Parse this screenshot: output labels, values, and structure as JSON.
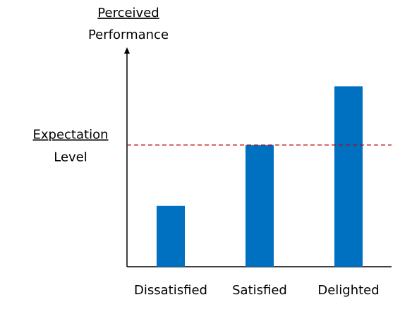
{
  "chart_data": {
    "type": "bar",
    "y_label": {
      "underlined": "Perceived",
      "text": "Performance"
    },
    "categories": [
      "Dissatisfied",
      "Satisfied",
      "Delighted"
    ],
    "values": [
      28,
      56,
      83
    ],
    "color": "#0070c0",
    "ylim": [
      0,
      100
    ],
    "reference_line": {
      "value": 56,
      "underlined": "Expectation",
      "text": "Level",
      "color": "#c00000",
      "dashed": true
    }
  }
}
